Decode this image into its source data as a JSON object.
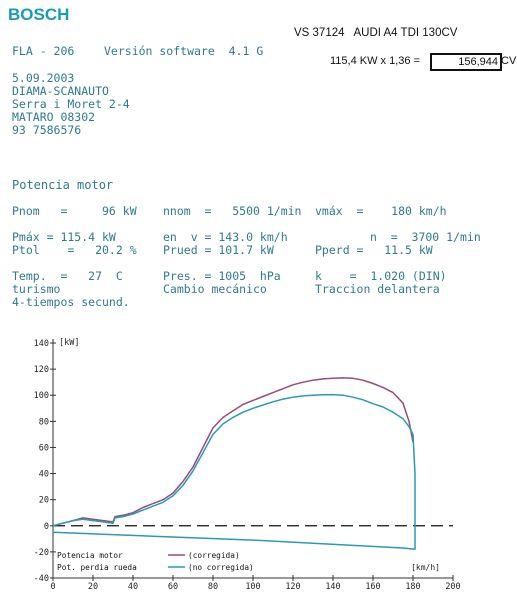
{
  "header": {
    "brand": "BOSCH",
    "vehicle": "VS 37124   AUDI A4 TDI 130CV",
    "calc_expr": "115,4 KW x 1,36 =",
    "calc_result": "156,944",
    "calc_unit": "CV",
    "fla": "FLA - 206",
    "software": "Versión software  4.1 G"
  },
  "client": {
    "date": "5.09.2003",
    "name": "DIAMA-SCANAUTO",
    "street": "Serra i Moret 2-4",
    "city": "MATARO 08302",
    "phone": "93 7586576"
  },
  "results": {
    "section_title": "Potencia motor",
    "rows": [
      [
        "Pnom   =     96 kW",
        "nnom  =   5500 1/min",
        "vmáx  =    180 km/h"
      ],
      [
        "Pmáx = 115.4 kW",
        "en  v = 143.0 km/h",
        "n  =  3700 1/min"
      ],
      [
        "Ptol    =   20.2 %",
        "Prued = 101.7 kW",
        "Pperd =   11.5 kW"
      ],
      [
        "Temp.  =   27  C",
        "Pres. = 1005  hPa",
        "k    =  1.020 (DIN)"
      ],
      [
        "turismo",
        "Cambio mecánico",
        "Traccion delantera"
      ],
      [
        "4-tiempos secund.",
        "",
        ""
      ]
    ]
  },
  "chart_data": {
    "type": "line",
    "xlabel": "[km/h]",
    "ylabel": "[kW]",
    "xlim": [
      0,
      200
    ],
    "ylim": [
      -40,
      140
    ],
    "x_ticks": [
      "0",
      "20",
      "40",
      "60",
      "80",
      "100",
      "120",
      "140",
      "160",
      "180",
      "200"
    ],
    "y_ticks": [
      "140",
      "120",
      "100",
      "80",
      "60",
      "40",
      "20",
      "0",
      "-20",
      "-40"
    ],
    "legend": [
      {
        "label": "Potencia motor",
        "desc": "(corregida)",
        "color": "#9a4a7a"
      },
      {
        "label": "Pot. perdia rueda",
        "desc": "(no corregida)",
        "color": "#2a9ab5"
      }
    ],
    "series": [
      {
        "name": "(corregida)",
        "color": "#9a4a7a",
        "x": [
          0,
          5,
          10,
          15,
          20,
          25,
          30,
          30.5,
          31,
          35,
          40,
          45,
          50,
          55,
          60,
          65,
          70,
          75,
          80,
          85,
          90,
          95,
          100,
          105,
          110,
          115,
          120,
          125,
          130,
          135,
          140,
          145,
          150,
          155,
          160,
          165,
          170,
          175,
          178,
          180
        ],
        "y": [
          0,
          2,
          4,
          6,
          5,
          4,
          3,
          5,
          7,
          8,
          10,
          14,
          17,
          20,
          25,
          34,
          45,
          60,
          75,
          83,
          88,
          93,
          96,
          99,
          102,
          105,
          108,
          110,
          111.5,
          112.5,
          113,
          113.3,
          113,
          111.5,
          109,
          106,
          102,
          94,
          80,
          64
        ]
      },
      {
        "name": "(no corregida)",
        "color": "#2a9ab5",
        "x": [
          0,
          5,
          10,
          15,
          20,
          25,
          30,
          30.5,
          31,
          35,
          40,
          45,
          50,
          55,
          60,
          65,
          70,
          75,
          80,
          85,
          90,
          95,
          100,
          105,
          110,
          115,
          120,
          125,
          130,
          135,
          140,
          145,
          150,
          155,
          160,
          165,
          170,
          175,
          178,
          180,
          181,
          181,
          175,
          150,
          100,
          50,
          0
        ],
        "y": [
          0,
          2,
          4,
          5,
          4,
          3,
          2,
          4,
          6,
          7,
          9,
          12,
          15,
          18,
          23,
          31,
          42,
          56,
          70,
          78,
          83,
          87,
          90,
          92.5,
          95,
          97,
          98.5,
          99.5,
          100,
          100.3,
          100.5,
          100,
          98.5,
          96.5,
          93.5,
          91,
          87,
          82,
          76,
          70,
          40,
          -18,
          -17,
          -15,
          -11,
          -8,
          -5
        ]
      }
    ],
    "reference_line": {
      "y": 0,
      "style": "dashed"
    }
  }
}
